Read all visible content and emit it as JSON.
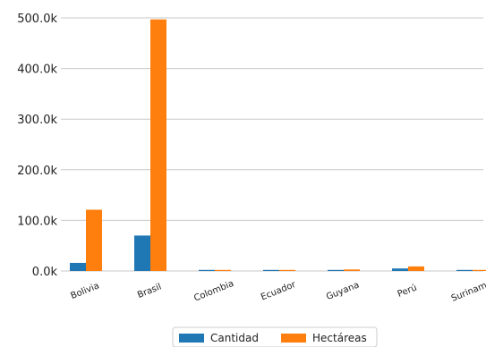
{
  "chart_data": {
    "type": "bar",
    "title": "",
    "xlabel": "",
    "ylabel": "",
    "categories": [
      "Bolivia",
      "Brasil",
      "Colombia",
      "Ecuador",
      "Guyana",
      "Perú",
      "Suriname"
    ],
    "series": [
      {
        "name": "Cantidad",
        "color": "#1f77b4",
        "values": [
          16000,
          70000,
          150,
          100,
          1500,
          5000,
          300
        ]
      },
      {
        "name": "Hectáreas",
        "color": "#ff7f0e",
        "values": [
          121000,
          497000,
          200,
          150,
          3000,
          9000,
          2000
        ]
      }
    ],
    "ylim": [
      0,
      500000
    ],
    "yticks": [
      0,
      100000,
      200000,
      300000,
      400000,
      500000
    ],
    "ytick_labels": [
      "0.0k",
      "100.0k",
      "200.0k",
      "300.0k",
      "400.0k",
      "500.0k"
    ],
    "grid": "horizontal",
    "legend_position": "bottom-center"
  }
}
